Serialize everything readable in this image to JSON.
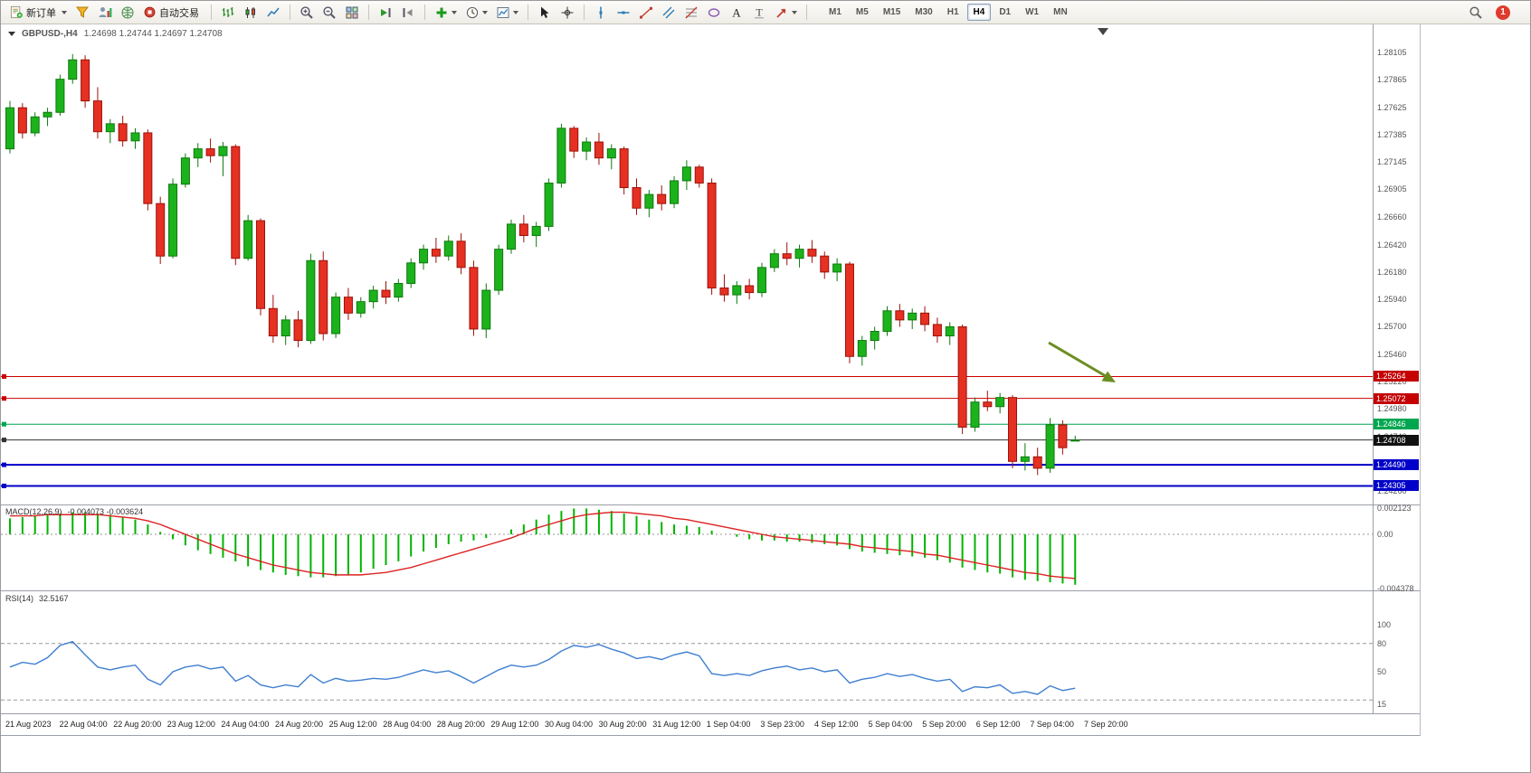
{
  "toolbar": {
    "new_order_label": "新订单",
    "autotrading_label": "自动交易",
    "text_tool_glyph": "A",
    "label_tool_glyph": "T",
    "timeframes": [
      "M1",
      "M5",
      "M15",
      "M30",
      "H1",
      "H4",
      "D1",
      "W1",
      "MN"
    ],
    "active_timeframe": "H4",
    "notification_badge": "1"
  },
  "chart_header": {
    "title": "GBPUSD-,H4",
    "ohlc": "1.24698 1.24744 1.24697 1.24708"
  },
  "price_scale": {
    "labels": [
      "1.28105",
      "1.27865",
      "1.27625",
      "1.27385",
      "1.27145",
      "1.26905",
      "1.26660",
      "1.26420",
      "1.26180",
      "1.25940",
      "1.25700",
      "1.25460",
      "1.25220",
      "1.24980",
      "1.24740",
      "1.24500",
      "1.24260"
    ],
    "tags": [
      {
        "text": "1.25264",
        "color": "#c40000"
      },
      {
        "text": "1.25072",
        "color": "#c40000"
      },
      {
        "text": "1.24846",
        "color": "#00a650"
      },
      {
        "text": "1.24708",
        "color": "#111111"
      },
      {
        "text": "1.24490",
        "color": "#0000c8"
      },
      {
        "text": "1.24305",
        "color": "#0000c8"
      }
    ]
  },
  "time_axis": [
    "21 Aug 2023",
    "22 Aug 04:00",
    "22 Aug 20:00",
    "23 Aug 12:00",
    "24 Aug 04:00",
    "24 Aug 20:00",
    "25 Aug 12:00",
    "28 Aug 04:00",
    "28 Aug 20:00",
    "29 Aug 12:00",
    "30 Aug 04:00",
    "30 Aug 20:00",
    "31 Aug 12:00",
    "1 Sep 04:00",
    "3 Sep 23:00",
    "4 Sep 12:00",
    "5 Sep 04:00",
    "5 Sep 20:00",
    "6 Sep 12:00",
    "7 Sep 04:00",
    "7 Sep 20:00"
  ],
  "chart_data": {
    "type": "candlestick",
    "symbol": "GBPUSD-",
    "period": "H4",
    "ohlc": {
      "open": "1.24698",
      "high": "1.24744",
      "low": "1.24697",
      "close": "1.24708"
    },
    "ylim": [
      1.2413,
      1.2834
    ],
    "up_color": "#1cb21c",
    "up_border": "#0e7a0e",
    "down_color": "#e53022",
    "down_border": "#9c120a",
    "candles": [
      [
        1.2726,
        1.2768,
        1.2722,
        1.2762
      ],
      [
        1.2762,
        1.2766,
        1.2735,
        1.274
      ],
      [
        1.274,
        1.2758,
        1.2737,
        1.2754
      ],
      [
        1.2754,
        1.2762,
        1.2746,
        1.2758
      ],
      [
        1.2758,
        1.2791,
        1.2755,
        1.2787
      ],
      [
        1.2787,
        1.2809,
        1.2783,
        1.2804
      ],
      [
        1.2804,
        1.2808,
        1.2762,
        1.2768
      ],
      [
        1.2768,
        1.278,
        1.2735,
        1.2741
      ],
      [
        1.2741,
        1.2752,
        1.2731,
        1.2748
      ],
      [
        1.2748,
        1.2755,
        1.2728,
        1.2733
      ],
      [
        1.2733,
        1.2744,
        1.2726,
        1.274
      ],
      [
        1.274,
        1.2743,
        1.2672,
        1.2678
      ],
      [
        1.2678,
        1.2684,
        1.2625,
        1.2632
      ],
      [
        1.2632,
        1.27,
        1.263,
        1.2695
      ],
      [
        1.2695,
        1.2722,
        1.2692,
        1.2718
      ],
      [
        1.2718,
        1.2731,
        1.271,
        1.2726
      ],
      [
        1.2726,
        1.2735,
        1.2714,
        1.272
      ],
      [
        1.272,
        1.2732,
        1.2702,
        1.2728
      ],
      [
        1.2728,
        1.273,
        1.2624,
        1.263
      ],
      [
        1.263,
        1.2668,
        1.2628,
        1.2663
      ],
      [
        1.2663,
        1.2665,
        1.258,
        1.2586
      ],
      [
        1.2586,
        1.2598,
        1.2556,
        1.2562
      ],
      [
        1.2562,
        1.258,
        1.2554,
        1.2576
      ],
      [
        1.2576,
        1.2584,
        1.2552,
        1.2558
      ],
      [
        1.2558,
        1.2634,
        1.2555,
        1.2628
      ],
      [
        1.2628,
        1.2636,
        1.2558,
        1.2564
      ],
      [
        1.2564,
        1.26,
        1.256,
        1.2596
      ],
      [
        1.2596,
        1.2604,
        1.2576,
        1.2582
      ],
      [
        1.2582,
        1.2596,
        1.2578,
        1.2592
      ],
      [
        1.2592,
        1.2606,
        1.2586,
        1.2602
      ],
      [
        1.2602,
        1.261,
        1.259,
        1.2596
      ],
      [
        1.2596,
        1.2612,
        1.2592,
        1.2608
      ],
      [
        1.2608,
        1.263,
        1.2604,
        1.2626
      ],
      [
        1.2626,
        1.2642,
        1.262,
        1.2638
      ],
      [
        1.2638,
        1.2648,
        1.2626,
        1.2632
      ],
      [
        1.2632,
        1.265,
        1.2628,
        1.2645
      ],
      [
        1.2645,
        1.2652,
        1.2616,
        1.2622
      ],
      [
        1.2622,
        1.2628,
        1.2562,
        1.2568
      ],
      [
        1.2568,
        1.2608,
        1.256,
        1.2602
      ],
      [
        1.2602,
        1.2642,
        1.2598,
        1.2638
      ],
      [
        1.2638,
        1.2664,
        1.2634,
        1.266
      ],
      [
        1.266,
        1.2668,
        1.2644,
        1.265
      ],
      [
        1.265,
        1.2662,
        1.264,
        1.2658
      ],
      [
        1.2658,
        1.27,
        1.2654,
        1.2696
      ],
      [
        1.2696,
        1.2748,
        1.2692,
        1.2744
      ],
      [
        1.2744,
        1.2746,
        1.2718,
        1.2724
      ],
      [
        1.2724,
        1.2736,
        1.2716,
        1.2732
      ],
      [
        1.2732,
        1.274,
        1.2712,
        1.2718
      ],
      [
        1.2718,
        1.273,
        1.2708,
        1.2726
      ],
      [
        1.2726,
        1.2728,
        1.2686,
        1.2692
      ],
      [
        1.2692,
        1.27,
        1.2668,
        1.2674
      ],
      [
        1.2674,
        1.269,
        1.2666,
        1.2686
      ],
      [
        1.2686,
        1.2694,
        1.2672,
        1.2678
      ],
      [
        1.2678,
        1.2702,
        1.2674,
        1.2698
      ],
      [
        1.2698,
        1.2716,
        1.269,
        1.271
      ],
      [
        1.271,
        1.2712,
        1.2692,
        1.2696
      ],
      [
        1.2696,
        1.27,
        1.2598,
        1.2604
      ],
      [
        1.2604,
        1.2616,
        1.2592,
        1.2598
      ],
      [
        1.2598,
        1.261,
        1.259,
        1.2606
      ],
      [
        1.2606,
        1.2612,
        1.2594,
        1.26
      ],
      [
        1.26,
        1.2626,
        1.2596,
        1.2622
      ],
      [
        1.2622,
        1.2638,
        1.2618,
        1.2634
      ],
      [
        1.2634,
        1.2644,
        1.2624,
        1.263
      ],
      [
        1.263,
        1.2642,
        1.2622,
        1.2638
      ],
      [
        1.2638,
        1.2646,
        1.2626,
        1.2632
      ],
      [
        1.2632,
        1.2636,
        1.2612,
        1.2618
      ],
      [
        1.2618,
        1.263,
        1.261,
        1.2625
      ],
      [
        1.2625,
        1.2627,
        1.2538,
        1.2544
      ],
      [
        1.2544,
        1.2562,
        1.2536,
        1.2558
      ],
      [
        1.2558,
        1.257,
        1.255,
        1.2566
      ],
      [
        1.2566,
        1.2588,
        1.2562,
        1.2584
      ],
      [
        1.2584,
        1.259,
        1.257,
        1.2576
      ],
      [
        1.2576,
        1.2586,
        1.2568,
        1.2582
      ],
      [
        1.2582,
        1.2588,
        1.2566,
        1.2572
      ],
      [
        1.2572,
        1.2578,
        1.2556,
        1.2562
      ],
      [
        1.2562,
        1.2574,
        1.2554,
        1.257
      ],
      [
        1.257,
        1.2572,
        1.2476,
        1.2482
      ],
      [
        1.2482,
        1.2508,
        1.2478,
        1.2504
      ],
      [
        1.2504,
        1.2514,
        1.2496,
        1.25
      ],
      [
        1.25,
        1.2512,
        1.2494,
        1.2508
      ],
      [
        1.2508,
        1.251,
        1.2446,
        1.2452
      ],
      [
        1.2452,
        1.2468,
        1.2444,
        1.2456
      ],
      [
        1.2456,
        1.2464,
        1.244,
        1.2446
      ],
      [
        1.2446,
        1.249,
        1.2442,
        1.2484
      ],
      [
        1.2484,
        1.2488,
        1.2458,
        1.2464
      ],
      [
        1.24698,
        1.24744,
        1.24697,
        1.24708
      ]
    ],
    "hlines": [
      {
        "price": 1.25264,
        "color": "#cc0000",
        "width": 1
      },
      {
        "price": 1.25072,
        "color": "#cc0000",
        "width": 1
      },
      {
        "price": 1.24846,
        "color": "#00a650",
        "width": 1
      },
      {
        "price": 1.24708,
        "color": "#333333",
        "width": 1
      },
      {
        "price": 1.2449,
        "color": "#0000c8",
        "width": 2
      },
      {
        "price": 1.24305,
        "color": "#0000c8",
        "width": 2
      }
    ],
    "annotations": {
      "arrow_color": "#6b8e23"
    },
    "indicators": {
      "macd": {
        "name": "MACD(12,26,9)",
        "values_text": "-0.004073 -0.003624",
        "scale_labels": [
          "0.002123",
          "0.00",
          "-0.004378"
        ],
        "scale_values": [
          0.002123,
          0,
          -0.004378
        ],
        "histogram_color": "#00b400",
        "signal_color": "#dd2222",
        "histogram": [
          0.0013,
          0.0014,
          0.0015,
          0.0016,
          0.0017,
          0.0018,
          0.0018,
          0.0017,
          0.0016,
          0.0014,
          0.0012,
          0.0008,
          0.0002,
          -0.0004,
          -0.0009,
          -0.0013,
          -0.0016,
          -0.0019,
          -0.0022,
          -0.0026,
          -0.0029,
          -0.0031,
          -0.0033,
          -0.0034,
          -0.0035,
          -0.0035,
          -0.0034,
          -0.0033,
          -0.0031,
          -0.0028,
          -0.0025,
          -0.0022,
          -0.0018,
          -0.0014,
          -0.0011,
          -0.0008,
          -0.0006,
          -0.0005,
          -0.0003,
          0.0,
          0.0004,
          0.0008,
          0.0012,
          0.0016,
          0.0019,
          0.0021,
          0.0021,
          0.002,
          0.0019,
          0.0017,
          0.0015,
          0.0012,
          0.001,
          0.0008,
          0.0007,
          0.0006,
          0.0003,
          0.0,
          -0.0002,
          -0.0004,
          -0.0005,
          -0.0005,
          -0.0006,
          -0.0006,
          -0.0007,
          -0.0008,
          -0.0009,
          -0.0012,
          -0.0014,
          -0.0015,
          -0.0016,
          -0.0017,
          -0.0018,
          -0.0019,
          -0.0021,
          -0.0023,
          -0.0027,
          -0.0029,
          -0.0031,
          -0.0032,
          -0.0035,
          -0.0037,
          -0.0038,
          -0.0039,
          -0.004,
          -0.0041
        ],
        "signal": [
          0.0015,
          0.0015,
          0.0015,
          0.0016,
          0.0016,
          0.0016,
          0.0016,
          0.0016,
          0.0015,
          0.0014,
          0.0013,
          0.0011,
          0.0008,
          0.0004,
          0.0,
          -0.0004,
          -0.0008,
          -0.0012,
          -0.0016,
          -0.0019,
          -0.0022,
          -0.0025,
          -0.0027,
          -0.0029,
          -0.0031,
          -0.0032,
          -0.0033,
          -0.0033,
          -0.0033,
          -0.0032,
          -0.0031,
          -0.0029,
          -0.0027,
          -0.0024,
          -0.0021,
          -0.0018,
          -0.0015,
          -0.0012,
          -0.0009,
          -0.0006,
          -0.0003,
          0.0001,
          0.0005,
          0.0008,
          0.0011,
          0.0014,
          0.0016,
          0.0017,
          0.0018,
          0.0018,
          0.0017,
          0.0016,
          0.0015,
          0.0013,
          0.0012,
          0.001,
          0.0008,
          0.0006,
          0.0004,
          0.0002,
          0.0,
          -0.0002,
          -0.0003,
          -0.0004,
          -0.0005,
          -0.0006,
          -0.0007,
          -0.0008,
          -0.001,
          -0.0011,
          -0.0012,
          -0.0013,
          -0.0014,
          -0.0016,
          -0.0017,
          -0.0019,
          -0.0021,
          -0.0023,
          -0.0025,
          -0.0027,
          -0.0029,
          -0.0031,
          -0.0032,
          -0.0034,
          -0.0035,
          -0.0036
        ]
      },
      "rsi": {
        "name": "RSI(14)",
        "value_text": "32.5167",
        "scale_labels": [
          "100",
          "80",
          "50",
          "15"
        ],
        "scale_values": [
          100,
          80,
          50,
          15
        ],
        "levels": [
          80,
          20
        ],
        "line_color": "#3f7fd0",
        "values": [
          55,
          60,
          58,
          65,
          78,
          82,
          68,
          55,
          52,
          55,
          57,
          42,
          36,
          50,
          55,
          57,
          53,
          55,
          40,
          46,
          36,
          33,
          36,
          34,
          47,
          38,
          43,
          40,
          41,
          43,
          42,
          44,
          48,
          52,
          49,
          51,
          45,
          38,
          45,
          52,
          57,
          55,
          57,
          63,
          72,
          78,
          76,
          79,
          74,
          70,
          64,
          66,
          63,
          68,
          71,
          67,
          48,
          46,
          48,
          46,
          51,
          54,
          56,
          52,
          54,
          50,
          52,
          38,
          42,
          44,
          48,
          45,
          47,
          43,
          40,
          42,
          29,
          34,
          33,
          36,
          27,
          29,
          26,
          35,
          30,
          32.5
        ]
      }
    }
  }
}
